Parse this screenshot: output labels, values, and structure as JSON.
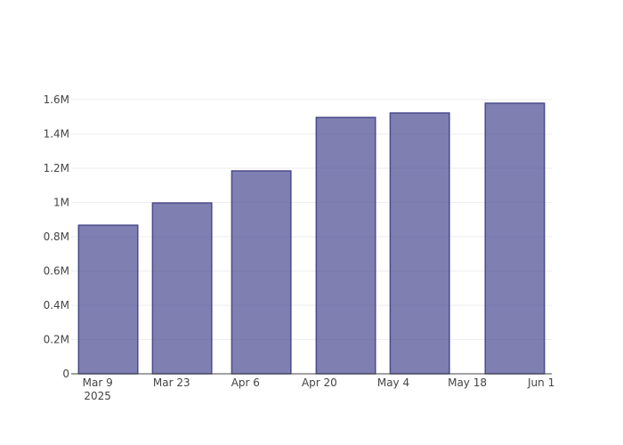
{
  "chart_data": {
    "type": "bar",
    "x": [
      "2025-03-11",
      "2025-03-25",
      "2025-04-09",
      "2025-04-25",
      "2025-05-09",
      "2025-05-27"
    ],
    "values": [
      867000,
      997000,
      1184000,
      1496000,
      1522000,
      1579000
    ],
    "bar_width_days": 11.2,
    "color": "rgba(72,72,145,0.7)",
    "edge_color": "#4b4b8c",
    "xlim": [
      "2025-03-04",
      "2025-06-03"
    ],
    "xticks": [
      {
        "value": "2025-03-09",
        "label": [
          "Mar 9",
          "2025"
        ]
      },
      {
        "value": "2025-03-23",
        "label": [
          "Mar 23"
        ]
      },
      {
        "value": "2025-04-06",
        "label": [
          "Apr 6"
        ]
      },
      {
        "value": "2025-04-20",
        "label": [
          "Apr 20"
        ]
      },
      {
        "value": "2025-05-04",
        "label": [
          "May 4"
        ]
      },
      {
        "value": "2025-05-18",
        "label": [
          "May 18"
        ]
      },
      {
        "value": "2025-06-01",
        "label": [
          "Jun 1"
        ]
      }
    ],
    "ylim": [
      0,
      1662000
    ],
    "yticks": [
      0,
      {
        "value": 200000,
        "label": "0.2M"
      },
      {
        "value": 400000,
        "label": "0.4M"
      },
      {
        "value": 600000,
        "label": "0.6M"
      },
      {
        "value": 800000,
        "label": "0.8M"
      },
      {
        "value": 1000000,
        "label": "1M"
      },
      {
        "value": 1200000,
        "label": "1.2M"
      },
      {
        "value": 1400000,
        "label": "1.4M"
      },
      {
        "value": 1600000,
        "label": "1.6M"
      }
    ],
    "grid": true
  }
}
